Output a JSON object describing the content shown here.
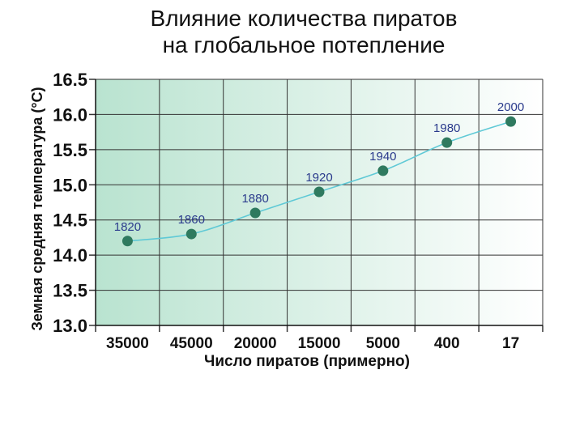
{
  "chart_data": {
    "type": "line",
    "title_lines": [
      "Влияние количества пиратов",
      "на глобальное потепление"
    ],
    "xlabel": "Число пиратов (примерно)",
    "ylabel": "Земная средняя температура (°С)",
    "categories": [
      "35000",
      "45000",
      "20000",
      "15000",
      "5000",
      "400",
      "17"
    ],
    "point_labels": [
      "1820",
      "1860",
      "1880",
      "1920",
      "1940",
      "1980",
      "2000"
    ],
    "values": [
      14.2,
      14.3,
      14.6,
      14.9,
      15.2,
      15.6,
      15.9
    ],
    "yticks": [
      "13.0",
      "13.5",
      "14.0",
      "14.5",
      "15.0",
      "15.5",
      "16.0",
      "16.5"
    ],
    "ylim": [
      13.0,
      16.5
    ],
    "grid": true,
    "colors": {
      "line": "#5fc9d6",
      "marker": "#2f7a5f",
      "point_label": "#2a3a8c",
      "grid": "#333333",
      "bg_start": "#b9e3d0",
      "bg_end": "#ffffff"
    }
  }
}
